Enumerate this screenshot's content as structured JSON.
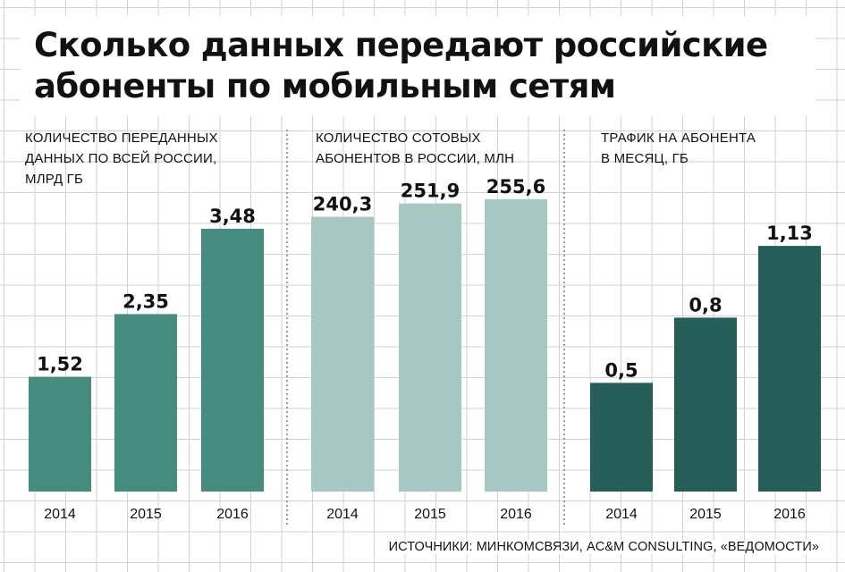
{
  "title": "Сколько данных передают российские\nабоненты по мобильным сетям",
  "sources": "ИСТОЧНИКИ: МИНКОМСВЯЗИ, AC&M CONSULTING, «ВЕДОМОСТИ»",
  "colors": {
    "panel1": "#468a80",
    "panel2": "#a7c7c3",
    "panel3": "#255e59"
  },
  "chart_data": [
    {
      "type": "bar",
      "title": "КОЛИЧЕСТВО ПЕРЕДАННЫХ\nДАННЫХ ПО ВСЕЙ РОССИИ,\nМЛРД ГБ",
      "categories": [
        "2014",
        "2015",
        "2016"
      ],
      "values": [
        1.52,
        2.35,
        3.48
      ],
      "value_labels": [
        "1,52",
        "2,35",
        "3,48"
      ],
      "ylim": [
        0,
        4.26
      ]
    },
    {
      "type": "bar",
      "title": "КОЛИЧЕСТВО СОТОВЫХ\nАБОНЕНТОВ В РОССИИ, МЛН",
      "categories": [
        "2014",
        "2015",
        "2016"
      ],
      "values": [
        240.3,
        251.9,
        255.6
      ],
      "value_labels": [
        "240,3",
        "251,9",
        "255,6"
      ],
      "ylim": [
        0,
        281.3
      ]
    },
    {
      "type": "bar",
      "title": "ТРАФИК НА АБОНЕНТА\nВ МЕСЯЦ, ГБ",
      "categories": [
        "2014",
        "2015",
        "2016"
      ],
      "values": [
        0.5,
        0.8,
        1.13
      ],
      "value_labels": [
        "0,5",
        "0,8",
        "1,13"
      ],
      "ylim": [
        0,
        1.48
      ]
    }
  ]
}
